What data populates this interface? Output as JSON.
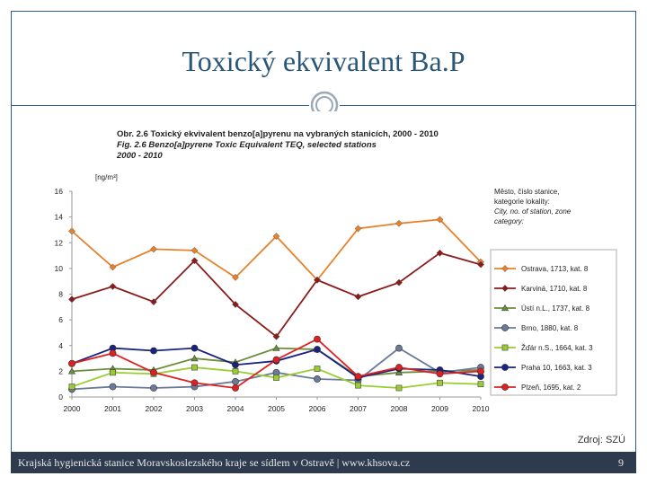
{
  "slide": {
    "title": "Toxický ekvivalent Ba.P",
    "source": "Zdroj: SZÚ",
    "footer": "Krajská hygienická stanice Moravskoslezského kraje se sídlem v Ostravě | www.khsova.cz",
    "page_number": "9"
  },
  "caption": {
    "line1": "Obr. 2.6 Toxický ekvivalent benzo[a]pyrenu na vybraných stanicích, 2000 - 2010",
    "line2": "Fig. 2.6  Benzo[a]pyrene Toxic Equivalent TEQ, selected stations",
    "line3": "2000 - 2010"
  },
  "chart_data": {
    "type": "line",
    "ylabel": "[ng/m³]",
    "ylim": [
      0,
      16
    ],
    "yticks": [
      0,
      2,
      4,
      6,
      8,
      10,
      12,
      14,
      16
    ],
    "x": [
      "2000",
      "2001",
      "2002",
      "2003",
      "2004",
      "2005",
      "2006",
      "2007",
      "2008",
      "2009",
      "2010"
    ],
    "legend_title": [
      "Město, číslo stanice,",
      "kategorie lokality:",
      "City, no. of station, zone",
      "category:"
    ],
    "legend_position": "right",
    "series": [
      {
        "name": "Ostrava, 1713, kat. 8",
        "color": "#e8822a",
        "marker": "diamond",
        "values": [
          12.9,
          10.1,
          11.5,
          11.4,
          9.3,
          12.5,
          9.1,
          13.1,
          13.5,
          13.8,
          10.5
        ]
      },
      {
        "name": "Karviná, 1710, kat. 8",
        "color": "#8b1a1a",
        "marker": "diamond",
        "values": [
          7.6,
          8.6,
          7.4,
          10.6,
          7.2,
          4.7,
          9.1,
          7.8,
          8.9,
          11.2,
          10.3
        ]
      },
      {
        "name": "Ústí n.L., 1737, kat. 8",
        "color": "#6b8e3a",
        "marker": "triangle",
        "values": [
          2.0,
          2.2,
          2.1,
          3.0,
          2.7,
          3.8,
          3.7,
          1.6,
          1.9,
          2.0,
          2.1
        ]
      },
      {
        "name": "Brno, 1880, kat. 8",
        "color": "#6b7a99",
        "marker": "circle",
        "values": [
          0.6,
          0.8,
          0.7,
          0.8,
          1.2,
          1.9,
          1.4,
          1.3,
          3.8,
          1.9,
          2.3
        ]
      },
      {
        "name": "Žďár n.S., 1664, kat. 3",
        "color": "#9acd32",
        "marker": "square",
        "values": [
          0.8,
          1.9,
          1.8,
          2.3,
          2.0,
          1.5,
          2.2,
          0.9,
          0.7,
          1.1,
          1.0
        ]
      },
      {
        "name": "Praha 10, 1663, kat. 3",
        "color": "#1a237e",
        "marker": "circle",
        "values": [
          2.6,
          3.8,
          3.6,
          3.8,
          2.5,
          2.8,
          3.7,
          1.5,
          2.2,
          2.1,
          1.6
        ]
      },
      {
        "name": "Plzeň, 1695, kat. 2",
        "color": "#e02020",
        "marker": "circle",
        "values": [
          2.6,
          3.4,
          1.9,
          1.1,
          0.7,
          2.9,
          4.5,
          1.6,
          2.3,
          1.8,
          2.0
        ]
      }
    ]
  }
}
